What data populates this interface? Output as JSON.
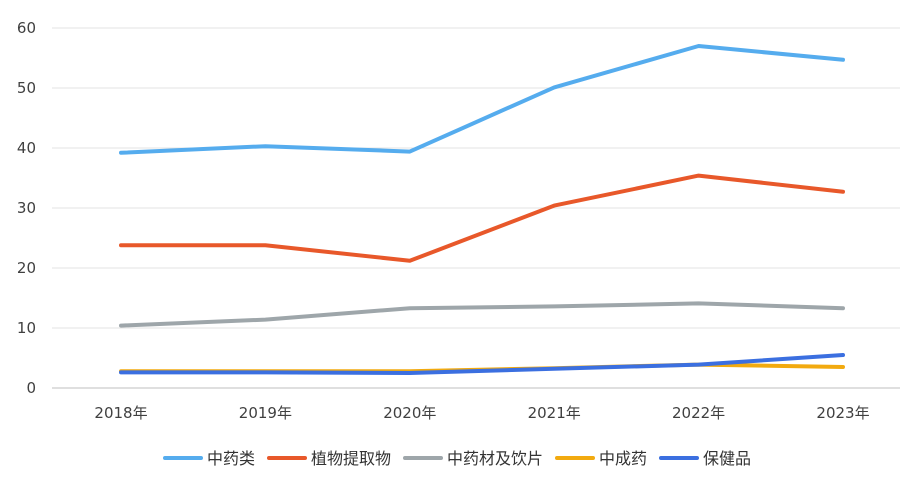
{
  "chart_data": {
    "type": "line",
    "categories": [
      "2018年",
      "2019年",
      "2020年",
      "2021年",
      "2022年",
      "2023年"
    ],
    "ylim": [
      0,
      60
    ],
    "yticks": [
      0,
      10,
      20,
      30,
      40,
      50,
      60
    ],
    "grid": true,
    "legend_position": "bottom",
    "series": [
      {
        "name": "中药类",
        "color": "#55acee",
        "values": [
          39.2,
          40.3,
          39.4,
          50.1,
          57.0,
          54.7
        ]
      },
      {
        "name": "植物提取物",
        "color": "#e8582a",
        "values": [
          23.8,
          23.8,
          21.2,
          30.4,
          35.4,
          32.7
        ]
      },
      {
        "name": "中药材及饮片",
        "color": "#9ea6aa",
        "values": [
          10.4,
          11.4,
          13.3,
          13.6,
          14.1,
          13.3
        ]
      },
      {
        "name": "中成药",
        "color": "#f2aa0f",
        "values": [
          2.8,
          2.8,
          2.8,
          3.3,
          3.9,
          3.5
        ]
      },
      {
        "name": "保健品",
        "color": "#3b6fe0",
        "values": [
          2.6,
          2.6,
          2.5,
          3.2,
          3.9,
          5.5
        ]
      }
    ]
  }
}
